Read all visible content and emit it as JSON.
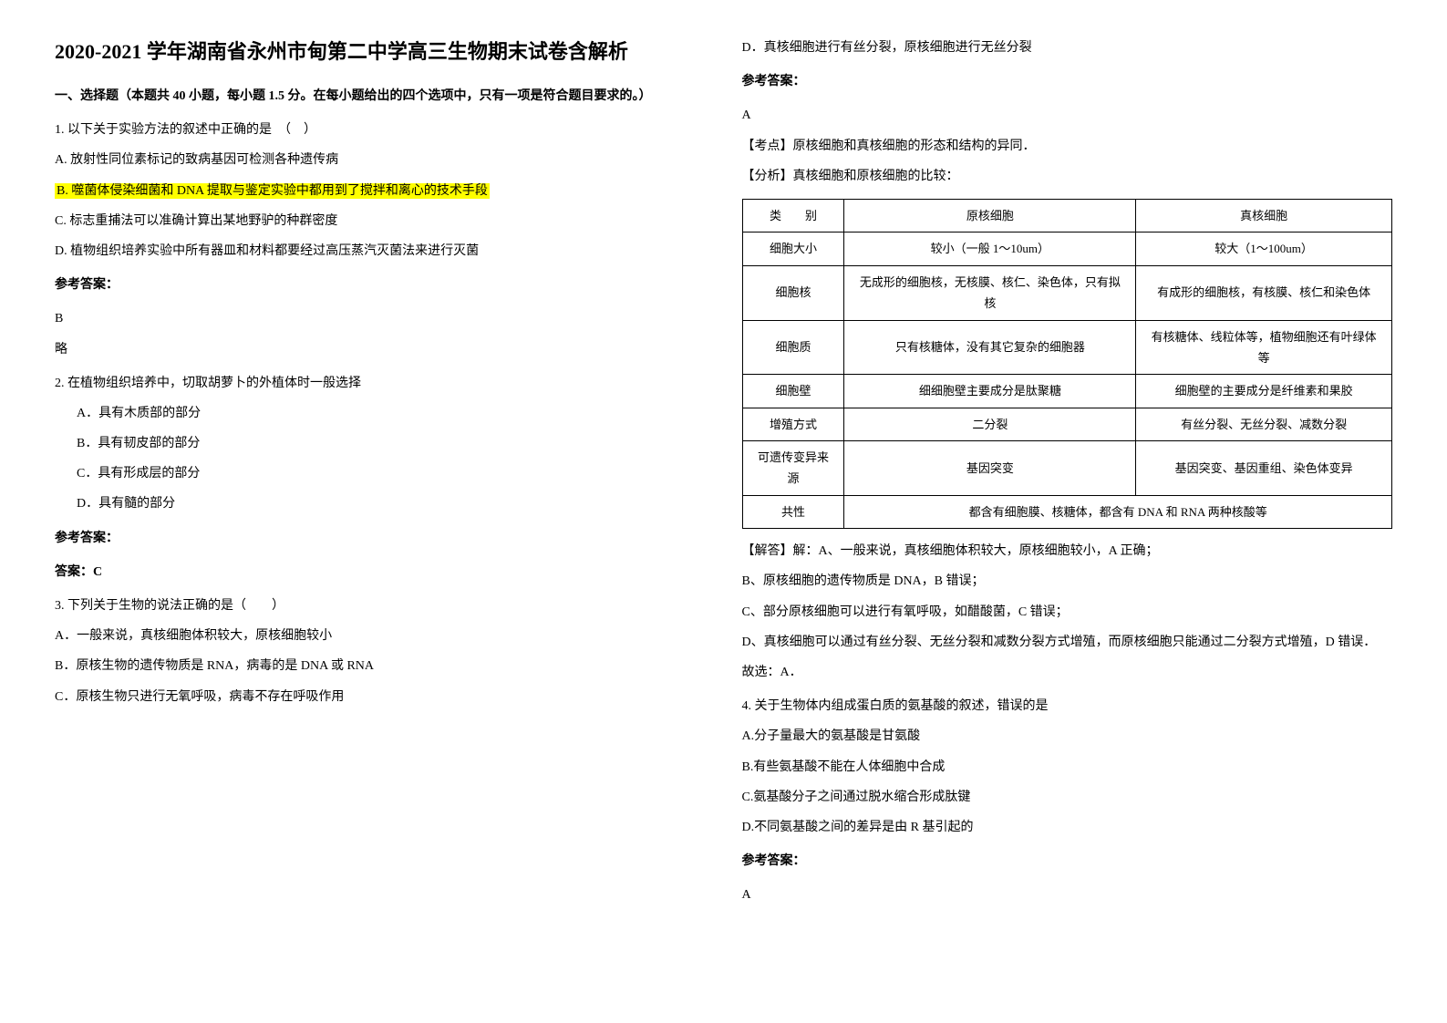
{
  "title": "2020-2021 学年湖南省永州市甸第二中学高三生物期末试卷含解析",
  "section1_heading": "一、选择题（本题共 40 小题，每小题 1.5 分。在每小题给出的四个选项中，只有一项是符合题目要求的。）",
  "q1": {
    "stem": "1. 以下关于实验方法的叙述中正确的是　（　）",
    "optA": "A. 放射性同位素标记的致病基因可检测各种遗传病",
    "optB": "B. 噬菌体侵染细菌和 DNA 提取与鉴定实验中都用到了搅拌和离心的技术手段",
    "optC": "C. 标志重捕法可以准确计算出某地野驴的种群密度",
    "optD": "D. 植物组织培养实验中所有器皿和材料都要经过高压蒸汽灭菌法来进行灭菌",
    "answer_label": "参考答案：",
    "answer": "B",
    "note": "略"
  },
  "q2": {
    "stem": "2. 在植物组织培养中，切取胡萝卜的外植体时一般选择",
    "optA": "A．具有木质部的部分",
    "optB": "B．具有韧皮部的部分",
    "optC": "C．具有形成层的部分",
    "optD": "D．具有髓的部分",
    "answer_label": "参考答案：",
    "answer": "答案：C"
  },
  "q3": {
    "stem": "3. 下列关于生物的说法正确的是（　　）",
    "optA": "A．一般来说，真核细胞体积较大，原核细胞较小",
    "optB": "B．原核生物的遗传物质是 RNA，病毒的是 DNA 或 RNA",
    "optC": "C．原核生物只进行无氧呼吸，病毒不存在呼吸作用",
    "optD": "D．真核细胞进行有丝分裂，原核细胞进行无丝分裂",
    "answer_label": "参考答案：",
    "answer": "A",
    "kaodian": "【考点】原核细胞和真核细胞的形态和结构的异同．",
    "fenxi": "【分析】真核细胞和原核细胞的比较："
  },
  "table": {
    "headers": [
      "类　　别",
      "原核细胞",
      "真核细胞"
    ],
    "rows": [
      [
        "细胞大小",
        "较小（一般 1～10um）",
        "较大（1～100um）"
      ],
      [
        "细胞核",
        "无成形的细胞核，无核膜、核仁、染色体，只有拟核",
        "有成形的细胞核，有核膜、核仁和染色体"
      ],
      [
        "细胞质",
        "只有核糖体，没有其它复杂的细胞器",
        "有核糖体、线粒体等，植物细胞还有叶绿体等"
      ],
      [
        "细胞壁",
        "细细胞壁主要成分是肽聚糖",
        "细胞壁的主要成分是纤维素和果胶"
      ],
      [
        "增殖方式",
        "二分裂",
        "有丝分裂、无丝分裂、减数分裂"
      ],
      [
        "可遗传变异来源",
        "基因突变",
        "基因突变、基因重组、染色体变异"
      ]
    ],
    "common_row_label": "共性",
    "common_row_value": "都含有细胞膜、核糖体，都含有 DNA 和 RNA 两种核酸等"
  },
  "q3_explain": {
    "line1": "【解答】解：A、一般来说，真核细胞体积较大，原核细胞较小，A 正确；",
    "line2": "B、原核细胞的遗传物质是 DNA，B 错误；",
    "line3": "C、部分原核细胞可以进行有氧呼吸，如醋酸菌，C 错误；",
    "line4": "D、真核细胞可以通过有丝分裂、无丝分裂和减数分裂方式增殖，而原核细胞只能通过二分裂方式增殖，D 错误．",
    "line5": "故选：A．"
  },
  "q4": {
    "stem": "4. 关于生物体内组成蛋白质的氨基酸的叙述，错误的是",
    "optA": "A.分子量最大的氨基酸是甘氨酸",
    "optB": "B.有些氨基酸不能在人体细胞中合成",
    "optC": "C.氨基酸分子之间通过脱水缩合形成肽键",
    "optD": "D.不同氨基酸之间的差异是由 R 基引起的",
    "answer_label": "参考答案：",
    "answer": "A"
  }
}
